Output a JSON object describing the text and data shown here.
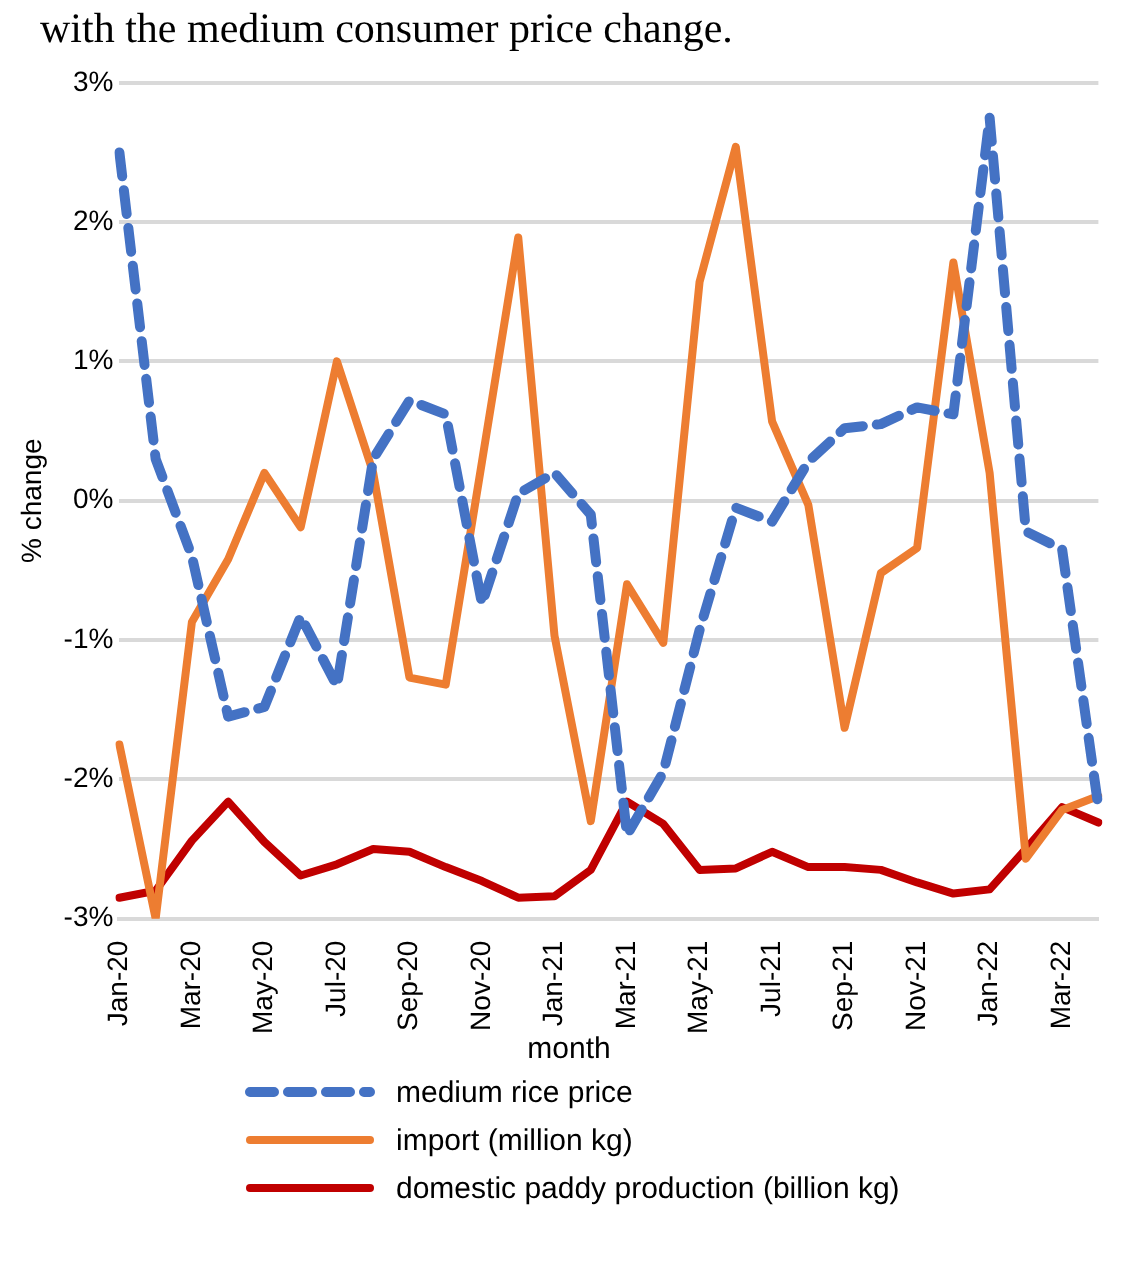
{
  "chart_data": {
    "type": "line",
    "title": "with the medium consumer price change.",
    "xlabel": "month",
    "ylabel": "% change",
    "categories": [
      "Jan-20",
      null,
      "Mar-20",
      null,
      "May-20",
      null,
      "Jul-20",
      null,
      "Sep-20",
      null,
      "Nov-20",
      null,
      "Jan-21",
      null,
      "Mar-21",
      null,
      "May-21",
      null,
      "Jul-21",
      null,
      "Sep-21",
      null,
      "Nov-21",
      null,
      "Jan-22",
      null,
      "Mar-22",
      null
    ],
    "series": [
      {
        "name": "medium rice price",
        "color": "#4472c4",
        "line_style": "dashed",
        "values": [
          2.5,
          0.3,
          -0.4,
          -1.55,
          -1.48,
          -0.83,
          -1.33,
          0.3,
          0.72,
          0.62,
          -0.74,
          0.05,
          0.2,
          -0.1,
          -2.4,
          -1.95,
          -0.93,
          -0.05,
          -0.15,
          0.28,
          0.52,
          0.55,
          0.67,
          0.62,
          2.75,
          -0.22,
          -0.35,
          -2.2
        ]
      },
      {
        "name": "import (million kg)",
        "color": "#ed7d31",
        "line_style": "solid",
        "values": [
          -1.75,
          -3.0,
          -0.87,
          -0.42,
          0.2,
          -0.19,
          1.0,
          0.2,
          -1.27,
          -1.32,
          0.28,
          1.89,
          -0.97,
          -2.3,
          -0.6,
          -1.02,
          1.57,
          2.54,
          0.57,
          -0.03,
          -1.63,
          -0.52,
          -0.34,
          1.71,
          0.2,
          -2.57,
          -2.22,
          -2.12
        ]
      },
      {
        "name": "domestic paddy production (billion kg)",
        "color": "#c00000",
        "line_style": "solid",
        "values": [
          -2.85,
          -2.8,
          -2.44,
          -2.16,
          -2.45,
          -2.69,
          -2.61,
          -2.5,
          -2.52,
          -2.63,
          -2.73,
          -2.85,
          -2.84,
          -2.65,
          -2.16,
          -2.32,
          -2.65,
          -2.64,
          -2.52,
          -2.63,
          -2.63,
          -2.65,
          -2.74,
          -2.82,
          -2.79,
          -2.5,
          -2.2,
          -2.31
        ]
      }
    ],
    "ylim": [
      -3,
      3
    ],
    "yticks": [
      {
        "value": -3,
        "label": "-3%"
      },
      {
        "value": -2,
        "label": "-2%"
      },
      {
        "value": -1,
        "label": "-1%"
      },
      {
        "value": 0,
        "label": "0%"
      },
      {
        "value": 1,
        "label": "1%"
      },
      {
        "value": 2,
        "label": "2%"
      },
      {
        "value": 3,
        "label": "3%"
      }
    ],
    "grid": "y",
    "legend": "bottom",
    "marker": "none"
  }
}
